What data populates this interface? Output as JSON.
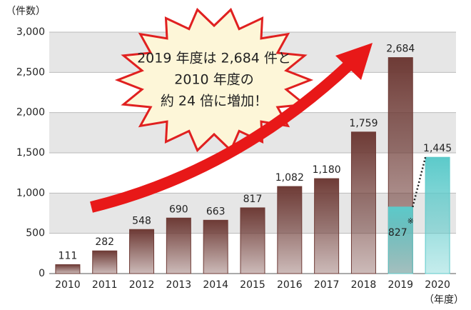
{
  "chart_data": {
    "type": "bar",
    "annotation": [
      "2019 年度は 2,684 件と",
      "2010 年度の",
      "約 24 倍に増加！"
    ],
    "y_label": "（件数）",
    "x_label": "（年度）",
    "note_mark": "※",
    "categories": [
      "2010",
      "2011",
      "2012",
      "2013",
      "2014",
      "2015",
      "2016",
      "2017",
      "2018",
      "2019",
      "2020"
    ],
    "series": [
      {
        "color": "#6e3b36",
        "values": [
          111,
          282,
          548,
          690,
          663,
          817,
          1082,
          1180,
          1759,
          2684,
          null
        ],
        "value_labels": [
          "111",
          "282",
          "548",
          "690",
          "663",
          "817",
          "1,082",
          "1,180",
          "1,759",
          "2,684",
          null
        ]
      },
      {
        "color": "#5ccaca",
        "values": [
          null,
          null,
          null,
          null,
          null,
          null,
          null,
          null,
          null,
          827,
          1445
        ],
        "value_labels": [
          null,
          null,
          null,
          null,
          null,
          null,
          null,
          null,
          null,
          "827",
          "1,445"
        ]
      }
    ],
    "ylim": [
      0,
      3000
    ],
    "yticks": [
      0,
      500,
      {
        "value": 1000,
        "label": "1,000"
      },
      {
        "value": 1500,
        "label": "1,500"
      },
      {
        "value": 2000,
        "label": "2,000"
      },
      {
        "value": 2500,
        "label": "2,500"
      },
      {
        "value": 3000,
        "label": "3,000"
      }
    ],
    "grid": true
  }
}
